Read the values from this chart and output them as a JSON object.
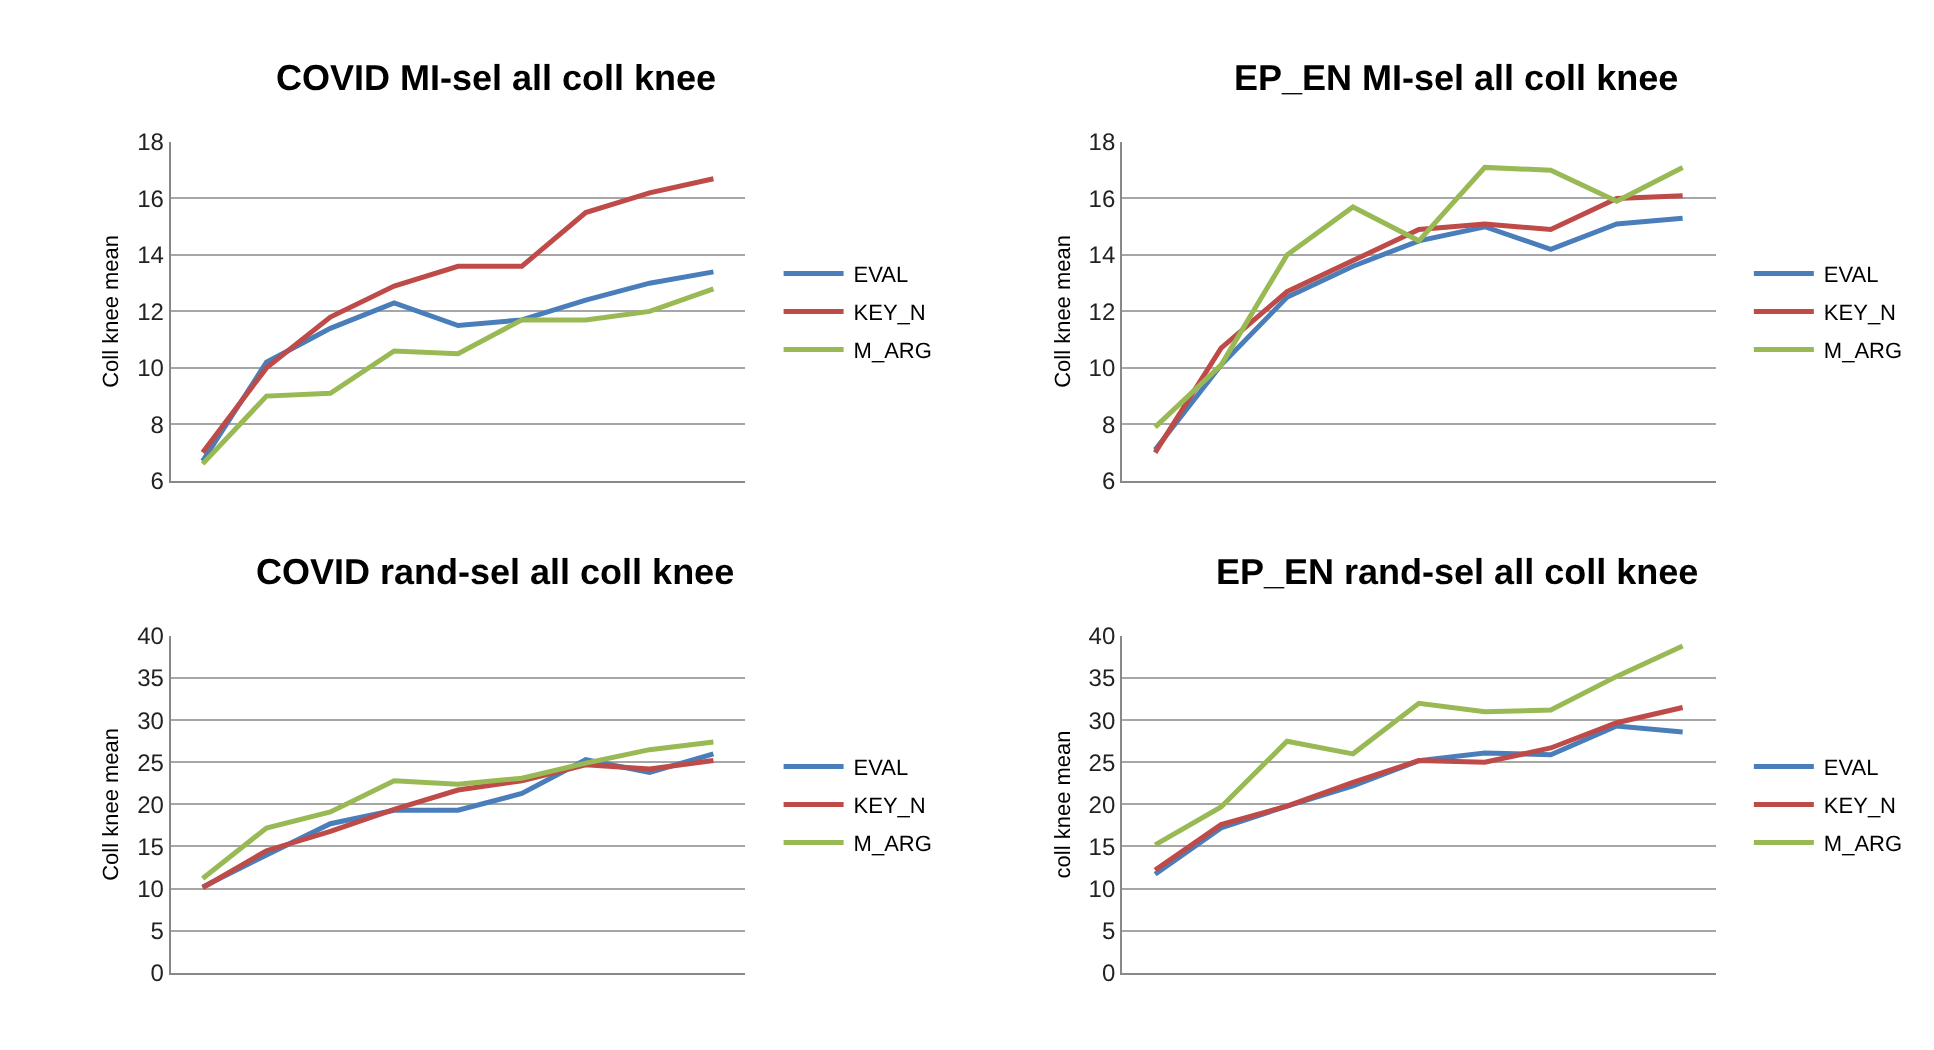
{
  "chart_data": [
    {
      "type": "line",
      "title": "COVID MI-sel all coll knee",
      "ylabel": "Coll knee mean",
      "categories": [
        null,
        null,
        null,
        null,
        null,
        null,
        null,
        null,
        null
      ],
      "ylim": [
        6,
        18
      ],
      "yticks": [
        6,
        8,
        10,
        12,
        14,
        16,
        18
      ],
      "grid": "y",
      "legend": "right",
      "tick_labels": "y",
      "marker": "none",
      "series": [
        {
          "name": "EVAL",
          "color": "#4a7ebb",
          "values": [
            6.7,
            10.2,
            11.4,
            12.3,
            11.5,
            11.7,
            12.4,
            13.0,
            13.4
          ]
        },
        {
          "name": "KEY_N",
          "color": "#be4b48",
          "values": [
            7.0,
            10.0,
            11.8,
            12.9,
            13.6,
            13.6,
            15.5,
            16.2,
            16.7
          ]
        },
        {
          "name": "M_ARG",
          "color": "#98b954",
          "values": [
            6.6,
            9.0,
            9.1,
            10.6,
            10.5,
            11.7,
            11.7,
            12.0,
            12.8
          ]
        }
      ]
    },
    {
      "type": "line",
      "title": "EP_EN MI-sel all coll knee",
      "ylabel": "Coll knee mean",
      "categories": [
        null,
        null,
        null,
        null,
        null,
        null,
        null,
        null,
        null
      ],
      "ylim": [
        6,
        18
      ],
      "yticks": [
        6,
        8,
        10,
        12,
        14,
        16,
        18
      ],
      "grid": "y",
      "legend": "right",
      "tick_labels": "y",
      "marker": "none",
      "series": [
        {
          "name": "EVAL",
          "color": "#4a7ebb",
          "values": [
            7.1,
            10.1,
            12.5,
            13.6,
            14.5,
            15.0,
            14.2,
            15.1,
            15.3
          ]
        },
        {
          "name": "KEY_N",
          "color": "#be4b48",
          "values": [
            7.0,
            10.7,
            12.7,
            13.8,
            14.9,
            15.1,
            14.9,
            16.0,
            16.1
          ]
        },
        {
          "name": "M_ARG",
          "color": "#98b954",
          "values": [
            7.9,
            10.1,
            14.0,
            15.7,
            14.5,
            17.1,
            17.0,
            15.9,
            17.1
          ]
        }
      ]
    },
    {
      "type": "line",
      "title": "COVID rand-sel all coll knee",
      "ylabel": "Coll knee mean",
      "categories": [
        null,
        null,
        null,
        null,
        null,
        null,
        null,
        null,
        null
      ],
      "ylim": [
        0,
        40
      ],
      "yticks": [
        0,
        5,
        10,
        15,
        20,
        25,
        30,
        35,
        40
      ],
      "grid": "y",
      "legend": "right",
      "tick_labels": "y",
      "marker": "none",
      "series": [
        {
          "name": "EVAL",
          "color": "#4a7ebb",
          "values": [
            10.2,
            14.0,
            17.7,
            19.3,
            19.3,
            21.3,
            25.3,
            23.8,
            26.0
          ]
        },
        {
          "name": "KEY_N",
          "color": "#be4b48",
          "values": [
            10.1,
            14.5,
            16.8,
            19.4,
            21.7,
            22.8,
            24.7,
            24.2,
            25.2
          ]
        },
        {
          "name": "M_ARG",
          "color": "#98b954",
          "values": [
            11.2,
            17.2,
            19.1,
            22.8,
            22.4,
            23.1,
            24.9,
            26.5,
            27.4
          ]
        }
      ]
    },
    {
      "type": "line",
      "title": "EP_EN rand-sel all coll knee",
      "ylabel": "coll knee mean",
      "categories": [
        null,
        null,
        null,
        null,
        null,
        null,
        null,
        null,
        null
      ],
      "ylim": [
        0,
        40
      ],
      "yticks": [
        0,
        5,
        10,
        15,
        20,
        25,
        30,
        35,
        40
      ],
      "grid": "y",
      "legend": "right",
      "tick_labels": "y",
      "marker": "none",
      "series": [
        {
          "name": "EVAL",
          "color": "#4a7ebb",
          "values": [
            11.7,
            17.2,
            19.8,
            22.2,
            25.2,
            26.1,
            25.9,
            29.3,
            28.6
          ]
        },
        {
          "name": "KEY_N",
          "color": "#be4b48",
          "values": [
            12.2,
            17.6,
            19.8,
            22.6,
            25.2,
            25.0,
            26.7,
            29.7,
            31.5
          ]
        },
        {
          "name": "M_ARG",
          "color": "#98b954",
          "values": [
            15.2,
            19.7,
            27.5,
            26.0,
            32.0,
            31.0,
            31.2,
            35.2,
            38.8
          ]
        }
      ]
    }
  ]
}
